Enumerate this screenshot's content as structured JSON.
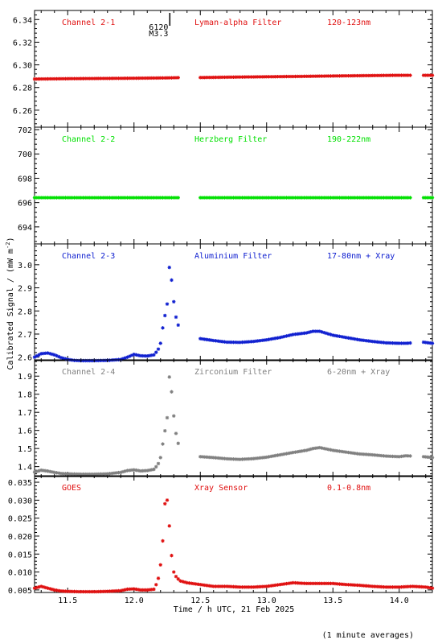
{
  "figure": {
    "xlabel": "Time / h UTC, 21 Feb 2025",
    "ylabel": "Calibrated Signal / (mW m",
    "ylabel_sup": "-2",
    "ylabel_close": ")",
    "footnote": "(1 minute averages)",
    "event_label_top": "6120",
    "event_label_bottom": "M3.3",
    "event_time": 12.27,
    "xticks": [
      11.5,
      12.0,
      12.5,
      13.0,
      13.5,
      14.0
    ],
    "xtick_labels": [
      "11.5",
      "12.0",
      "12.5",
      "13.0",
      "13.5",
      "14.0"
    ]
  },
  "chart_data": [
    {
      "type": "scatter",
      "name": "Channel 2-1",
      "filter": "Lyman-alpha Filter",
      "band": "120-123nm",
      "color": "#e01010",
      "xlim": [
        11.25,
        14.25
      ],
      "ylim": [
        6.245,
        6.348
      ],
      "yticks": [
        6.26,
        6.28,
        6.3,
        6.32,
        6.34
      ],
      "ytick_labels": [
        "6.26",
        "6.28",
        "6.30",
        "6.32",
        "6.34"
      ],
      "x": [
        11.25,
        11.5,
        11.75,
        12.0,
        12.25,
        12.33,
        12.5,
        12.75,
        13.0,
        13.25,
        13.5,
        13.75,
        14.0,
        14.09,
        14.18,
        14.25
      ],
      "y": [
        6.2875,
        6.2878,
        6.288,
        6.2882,
        6.2885,
        6.2887,
        6.2888,
        6.2892,
        6.2895,
        6.2898,
        6.2902,
        6.2905,
        6.2908,
        6.2908,
        6.2908,
        6.2908
      ],
      "gaps": [
        [
          12.34,
          12.49
        ],
        [
          14.09,
          14.18
        ]
      ]
    },
    {
      "type": "scatter",
      "name": "Channel 2-2",
      "filter": "Herzberg Filter",
      "band": "190-222nm",
      "color": "#00e000",
      "xlim": [
        11.25,
        14.25
      ],
      "ylim": [
        692.6,
        702.2
      ],
      "yticks": [
        694,
        696,
        698,
        700,
        702
      ],
      "ytick_labels": [
        "694",
        "696",
        "698",
        "700",
        "702"
      ],
      "x": [
        11.25,
        12.33,
        12.5,
        14.09,
        14.18,
        14.25
      ],
      "y": [
        696.4,
        696.4,
        696.4,
        696.4,
        696.4,
        696.4
      ],
      "gaps": [
        [
          12.34,
          12.49
        ],
        [
          14.09,
          14.18
        ]
      ]
    },
    {
      "type": "scatter",
      "name": "Channel 2-3",
      "filter": "Aluminium Filter",
      "band": "17-80nm + Xray",
      "color": "#1020d0",
      "xlim": [
        11.25,
        14.25
      ],
      "ylim": [
        2.585,
        3.09
      ],
      "yticks": [
        2.6,
        2.7,
        2.8,
        2.9,
        3.0
      ],
      "ytick_labels": [
        "2.6",
        "2.7",
        "2.8",
        "2.9",
        "3.0"
      ],
      "x": [
        11.25,
        11.3,
        11.35,
        11.4,
        11.45,
        11.5,
        11.55,
        11.6,
        11.7,
        11.8,
        11.9,
        11.95,
        12.0,
        12.05,
        12.1,
        12.15,
        12.18,
        12.2,
        12.22,
        12.25,
        12.27,
        12.29,
        12.31,
        12.33,
        12.5,
        12.6,
        12.7,
        12.8,
        12.9,
        13.0,
        13.1,
        13.2,
        13.3,
        13.35,
        13.4,
        13.5,
        13.6,
        13.7,
        13.8,
        13.9,
        14.0,
        14.05,
        14.18,
        14.25
      ],
      "y": [
        2.6,
        2.615,
        2.618,
        2.61,
        2.598,
        2.59,
        2.586,
        2.585,
        2.585,
        2.586,
        2.59,
        2.6,
        2.612,
        2.606,
        2.605,
        2.61,
        2.63,
        2.66,
        2.74,
        2.83,
        3.02,
        2.89,
        2.79,
        2.74,
        2.68,
        2.672,
        2.665,
        2.664,
        2.668,
        2.675,
        2.685,
        2.698,
        2.705,
        2.712,
        2.712,
        2.695,
        2.685,
        2.675,
        2.668,
        2.662,
        2.66,
        2.66,
        2.665,
        2.66
      ],
      "gaps": [
        [
          12.34,
          12.49
        ],
        [
          14.09,
          14.18
        ]
      ]
    },
    {
      "type": "scatter",
      "name": "Channel 2-4",
      "filter": "Zirconium Filter",
      "band": "6-20nm + Xray",
      "color": "#808080",
      "xlim": [
        11.25,
        14.25
      ],
      "ylim": [
        1.345,
        1.99
      ],
      "yticks": [
        1.4,
        1.5,
        1.6,
        1.7,
        1.8,
        1.9
      ],
      "ytick_labels": [
        "1.4",
        "1.5",
        "1.6",
        "1.7",
        "1.8",
        "1.9"
      ],
      "x": [
        11.25,
        11.3,
        11.35,
        11.4,
        11.45,
        11.5,
        11.6,
        11.7,
        11.8,
        11.9,
        11.95,
        12.0,
        12.05,
        12.1,
        12.15,
        12.18,
        12.2,
        12.22,
        12.25,
        12.27,
        12.29,
        12.31,
        12.33,
        12.5,
        12.6,
        12.7,
        12.8,
        12.9,
        13.0,
        13.1,
        13.2,
        13.3,
        13.35,
        13.4,
        13.5,
        13.6,
        13.7,
        13.8,
        13.9,
        14.0,
        14.05,
        14.18,
        14.25
      ],
      "y": [
        1.37,
        1.38,
        1.375,
        1.368,
        1.362,
        1.36,
        1.358,
        1.358,
        1.36,
        1.368,
        1.378,
        1.382,
        1.376,
        1.378,
        1.385,
        1.41,
        1.45,
        1.54,
        1.67,
        1.94,
        1.75,
        1.61,
        1.53,
        1.455,
        1.45,
        1.443,
        1.44,
        1.444,
        1.452,
        1.465,
        1.478,
        1.49,
        1.5,
        1.505,
        1.49,
        1.48,
        1.47,
        1.465,
        1.458,
        1.455,
        1.46,
        1.455,
        1.45
      ],
      "gaps": [
        [
          12.34,
          12.49
        ],
        [
          14.09,
          14.18
        ]
      ]
    },
    {
      "type": "scatter",
      "name": "GOES",
      "filter": "Xray Sensor",
      "band": "0.1-0.8nm",
      "color": "#e01010",
      "xlim": [
        11.25,
        14.25
      ],
      "ylim": [
        0.0043,
        0.0368
      ],
      "yticks": [
        0.005,
        0.01,
        0.015,
        0.02,
        0.025,
        0.03,
        0.035
      ],
      "ytick_labels": [
        "0.005",
        "0.010",
        "0.015",
        "0.020",
        "0.025",
        "0.030",
        "0.035"
      ],
      "x": [
        11.25,
        11.3,
        11.35,
        11.4,
        11.45,
        11.5,
        11.6,
        11.7,
        11.8,
        11.9,
        11.95,
        12.0,
        12.05,
        12.1,
        12.15,
        12.18,
        12.2,
        12.22,
        12.24,
        12.26,
        12.28,
        12.3,
        12.32,
        12.35,
        12.4,
        12.5,
        12.6,
        12.7,
        12.8,
        12.9,
        13.0,
        13.1,
        13.2,
        13.3,
        13.4,
        13.5,
        13.6,
        13.7,
        13.8,
        13.9,
        14.0,
        14.1,
        14.2,
        14.25
      ],
      "y": [
        0.0055,
        0.006,
        0.0055,
        0.005,
        0.0047,
        0.0046,
        0.0045,
        0.0045,
        0.0046,
        0.0048,
        0.0052,
        0.0053,
        0.005,
        0.005,
        0.0052,
        0.0075,
        0.012,
        0.02,
        0.0335,
        0.0265,
        0.0155,
        0.01,
        0.0085,
        0.0075,
        0.007,
        0.0065,
        0.006,
        0.006,
        0.0058,
        0.0058,
        0.006,
        0.0065,
        0.007,
        0.0068,
        0.0068,
        0.0068,
        0.0065,
        0.0063,
        0.006,
        0.0058,
        0.0058,
        0.006,
        0.0058,
        0.0055
      ],
      "gaps": []
    }
  ]
}
